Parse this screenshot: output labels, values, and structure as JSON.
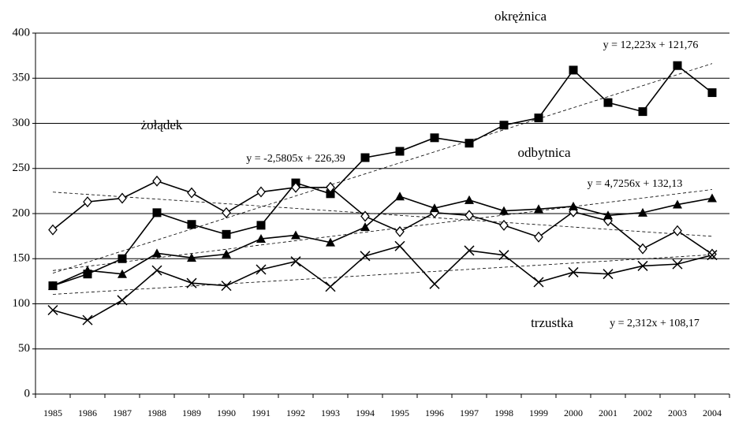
{
  "chart_data": {
    "type": "line",
    "categories": [
      "1985",
      "1986",
      "1987",
      "1988",
      "1989",
      "1990",
      "1991",
      "1992",
      "1993",
      "1994",
      "1995",
      "1996",
      "1997",
      "1998",
      "1999",
      "2000",
      "2001",
      "2002",
      "2003",
      "2004"
    ],
    "series": [
      {
        "name": "okrężnica",
        "color": "#000000",
        "marker": "square",
        "values": [
          120,
          133,
          150,
          201,
          188,
          177,
          187,
          234,
          222,
          262,
          269,
          284,
          278,
          298,
          306,
          359,
          323,
          313,
          364,
          334
        ],
        "trend": {
          "slope": 12.223,
          "intercept": 121.76,
          "label": "y = 12,223x + 121,76"
        }
      },
      {
        "name": "żołądek",
        "color": "#000000",
        "marker": "diamond",
        "values": [
          182,
          213,
          217,
          236,
          223,
          201,
          224,
          229,
          229,
          197,
          180,
          201,
          198,
          187,
          174,
          202,
          192,
          161,
          181,
          155
        ],
        "trend": {
          "slope": -2.5805,
          "intercept": 226.39,
          "label": "y = -2,5805x + 226,39"
        }
      },
      {
        "name": "odbytnica",
        "color": "#000000",
        "marker": "triangle",
        "values": [
          120,
          137,
          133,
          156,
          151,
          155,
          172,
          176,
          168,
          185,
          219,
          206,
          215,
          203,
          205,
          208,
          198,
          201,
          210,
          217
        ],
        "trend": {
          "slope": 4.7256,
          "intercept": 132.13,
          "label": "y = 4,7256x + 132,13"
        }
      },
      {
        "name": "trzustka",
        "color": "#000000",
        "marker": "cross",
        "values": [
          93,
          82,
          104,
          137,
          123,
          120,
          138,
          147,
          119,
          153,
          164,
          122,
          159,
          154,
          124,
          135,
          133,
          142,
          144,
          154
        ],
        "trend": {
          "slope": 2.312,
          "intercept": 108.17,
          "label": "y = 2,312x + 108,17"
        }
      }
    ],
    "ylim": [
      0,
      400
    ],
    "yticks": [
      0,
      50,
      100,
      150,
      200,
      250,
      300,
      350,
      400
    ],
    "grid": true
  }
}
